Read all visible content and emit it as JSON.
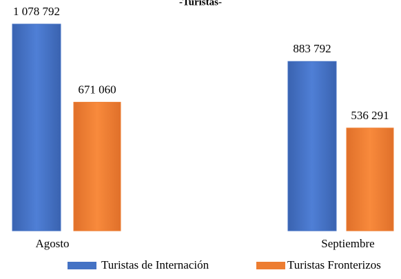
{
  "chart_data": {
    "type": "bar",
    "title": "-Turistas-",
    "categories": [
      "Agosto",
      "Septiembre"
    ],
    "series": [
      {
        "name": "Turistas de Internación",
        "color": "#4472c4",
        "values": [
          1078792,
          883792
        ],
        "value_labels": [
          "1 078 792",
          "883 792"
        ]
      },
      {
        "name": "Turistas Fronterizos",
        "color": "#ed7d31",
        "values": [
          671060,
          536291
        ],
        "value_labels": [
          "671 060",
          "536 291"
        ]
      }
    ]
  }
}
